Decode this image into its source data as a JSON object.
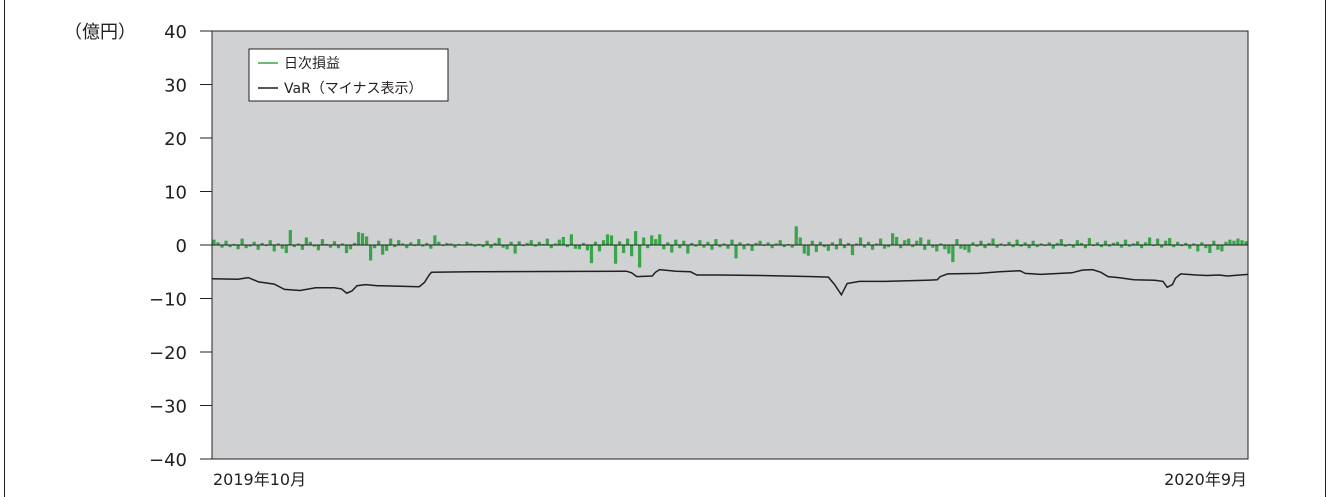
{
  "chart_data": {
    "type": "bar+line",
    "unit_label": "（億円）",
    "ylim": [
      -40,
      40
    ],
    "yticks": [
      40,
      30,
      20,
      10,
      0,
      -10,
      -20,
      -30,
      -40
    ],
    "ytick_labels": [
      "40",
      "30",
      "20",
      "10",
      "0",
      "−10",
      "−20",
      "−30",
      "−40"
    ],
    "x_start_label": "2019年10月",
    "x_end_label": "2020年9月",
    "grid": false,
    "legend_position": "top-left",
    "series": [
      {
        "name": "日次損益",
        "kind": "bar",
        "color": "#3aa44a",
        "values": [
          1.0,
          0.5,
          -0.5,
          0.8,
          -0.4,
          0.2,
          -0.8,
          1.2,
          -0.6,
          -0.3,
          0.6,
          -0.9,
          0.4,
          -0.2,
          0.9,
          -1.2,
          0.3,
          -0.7,
          -1.5,
          2.8,
          -0.4,
          0.3,
          -0.9,
          1.4,
          0.6,
          -0.3,
          -1.0,
          1.1,
          0.2,
          -0.5,
          0.7,
          -0.6,
          0.3,
          -1.5,
          -0.8,
          0.4,
          2.4,
          2.2,
          1.6,
          -2.9,
          -0.6,
          0.8,
          -1.8,
          -1.1,
          1.2,
          -0.4,
          0.9,
          0.3,
          -0.6,
          0.5,
          -0.2,
          1.1,
          -0.3,
          0.4,
          -0.7,
          1.8,
          0.6,
          -0.2,
          0.4,
          0.3,
          -0.5,
          0.2,
          -0.1,
          0.6,
          0.3,
          -0.3,
          0.2,
          -0.4,
          0.8,
          -0.6,
          0.4,
          1.3,
          -0.5,
          -0.8,
          0.6,
          -1.6,
          0.7,
          -0.2,
          0.4,
          0.9,
          -0.3,
          0.6,
          0.2,
          1.2,
          -0.6,
          0.3,
          1.0,
          1.5,
          -0.4,
          2.0,
          -0.7,
          -0.8,
          0.4,
          -1.0,
          -3.4,
          0.6,
          -1.2,
          0.9,
          2.0,
          1.8,
          -3.5,
          0.7,
          -1.5,
          1.2,
          -2.1,
          2.6,
          -4.2,
          1.4,
          -0.6,
          1.8,
          1.1,
          2.0,
          -0.8,
          0.5,
          -1.4,
          1.0,
          -0.6,
          0.8,
          -1.6,
          0.4,
          -0.3,
          0.9,
          -0.5,
          0.6,
          -0.9,
          1.1,
          -0.4,
          0.3,
          -0.7,
          1.0,
          -2.5,
          0.5,
          -0.8,
          0.3,
          -1.1,
          0.4,
          0.8,
          -0.2,
          0.5,
          -0.6,
          0.3,
          0.9,
          -0.4,
          0.2,
          -0.5,
          3.5,
          1.4,
          -1.6,
          -2.0,
          0.8,
          -1.3,
          0.6,
          -0.4,
          -1.1,
          0.5,
          -0.8,
          1.2,
          -0.6,
          0.4,
          -1.9,
          0.3,
          1.4,
          -0.5,
          0.6,
          -0.9,
          0.3,
          1.2,
          -0.7,
          -0.4,
          2.2,
          1.5,
          -0.6,
          0.9,
          1.2,
          -0.4,
          0.8,
          1.4,
          -0.9,
          1.0,
          -0.5,
          -1.2,
          0.3,
          -0.8,
          -1.6,
          -3.2,
          1.1,
          -0.7,
          -0.9,
          -1.4,
          0.5,
          -0.3,
          0.8,
          -0.6,
          0.4,
          1.2,
          -0.5,
          0.3,
          -0.2,
          0.6,
          -0.4,
          1.0,
          -0.3,
          0.5,
          -0.6,
          0.8,
          -0.4,
          0.3,
          -0.2,
          0.5,
          -0.7,
          0.4,
          1.1,
          -0.3,
          0.2,
          -0.5,
          0.9,
          0.4,
          -0.6,
          1.3,
          -0.2,
          0.5,
          -0.4,
          0.8,
          -0.3,
          0.4,
          0.6,
          -0.5,
          1.0,
          -0.3,
          0.3,
          0.7,
          -0.6,
          0.5,
          1.4,
          -0.2,
          1.2,
          -0.5,
          0.8,
          1.3,
          -0.4,
          0.6,
          -0.2,
          0.4,
          -0.7,
          0.3,
          -1.2,
          0.5,
          -0.6,
          -1.5,
          0.8,
          -0.9,
          -1.2,
          0.6,
          1.0,
          0.8,
          1.2,
          0.9,
          0.7
        ]
      },
      {
        "name": "VaR（マイナス表示）",
        "kind": "line",
        "color": "#231f20",
        "points": [
          [
            0,
            -6.3
          ],
          [
            0.025,
            -6.4
          ],
          [
            0.035,
            -6.1
          ],
          [
            0.045,
            -6.9
          ],
          [
            0.06,
            -7.3
          ],
          [
            0.07,
            -8.3
          ],
          [
            0.085,
            -8.5
          ],
          [
            0.1,
            -8.0
          ],
          [
            0.118,
            -8.0
          ],
          [
            0.125,
            -8.2
          ],
          [
            0.13,
            -9.0
          ],
          [
            0.135,
            -8.6
          ],
          [
            0.14,
            -7.6
          ],
          [
            0.148,
            -7.4
          ],
          [
            0.16,
            -7.6
          ],
          [
            0.2,
            -7.8
          ],
          [
            0.205,
            -7.0
          ],
          [
            0.21,
            -5.5
          ],
          [
            0.212,
            -5.1
          ],
          [
            0.25,
            -5.0
          ],
          [
            0.4,
            -4.9
          ],
          [
            0.405,
            -5.2
          ],
          [
            0.41,
            -5.9
          ],
          [
            0.425,
            -5.8
          ],
          [
            0.428,
            -5.1
          ],
          [
            0.432,
            -4.6
          ],
          [
            0.448,
            -4.9
          ],
          [
            0.462,
            -5.0
          ],
          [
            0.468,
            -5.6
          ],
          [
            0.49,
            -5.6
          ],
          [
            0.53,
            -5.7
          ],
          [
            0.58,
            -5.9
          ],
          [
            0.595,
            -6.0
          ],
          [
            0.601,
            -7.4
          ],
          [
            0.6075,
            -9.3
          ],
          [
            0.613,
            -7.2
          ],
          [
            0.625,
            -6.8
          ],
          [
            0.65,
            -6.8
          ],
          [
            0.69,
            -6.6
          ],
          [
            0.7,
            -6.5
          ],
          [
            0.703,
            -5.9
          ],
          [
            0.71,
            -5.4
          ],
          [
            0.74,
            -5.3
          ],
          [
            0.76,
            -5.0
          ],
          [
            0.78,
            -4.8
          ],
          [
            0.785,
            -5.3
          ],
          [
            0.8,
            -5.5
          ],
          [
            0.83,
            -5.2
          ],
          [
            0.84,
            -4.7
          ],
          [
            0.85,
            -4.6
          ],
          [
            0.858,
            -5.1
          ],
          [
            0.865,
            -5.9
          ],
          [
            0.875,
            -6.1
          ],
          [
            0.89,
            -6.5
          ],
          [
            0.91,
            -6.6
          ],
          [
            0.918,
            -6.8
          ],
          [
            0.922,
            -7.9
          ],
          [
            0.927,
            -7.4
          ],
          [
            0.93,
            -6.2
          ],
          [
            0.935,
            -5.4
          ],
          [
            0.95,
            -5.6
          ],
          [
            0.96,
            -5.7
          ],
          [
            0.972,
            -5.6
          ],
          [
            0.98,
            -5.8
          ],
          [
            1.0,
            -5.5
          ]
        ]
      }
    ]
  }
}
